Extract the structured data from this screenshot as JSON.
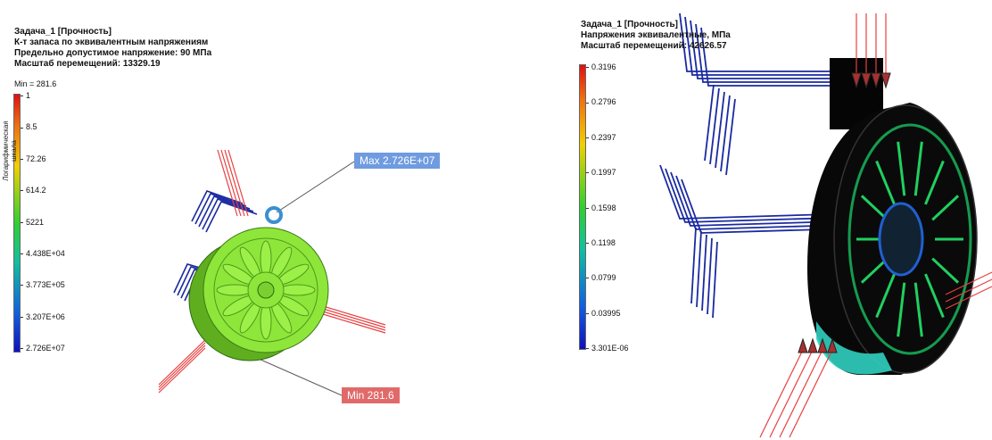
{
  "left": {
    "title_lines": [
      "Задача_1 [Прочность]",
      "К-т запаса по эквивалентным напряжениям",
      "Предельно допустимое напряжение: 90 МПа",
      "Масштаб перемещений: 13329.19"
    ],
    "min_label": "Min = 281.6",
    "scale_caption": "Логарифмическая шкала",
    "scale_labels": [
      "1",
      "8.5",
      "72.26",
      "614.2",
      "5221",
      "4.438E+04",
      "3.773E+05",
      "3.207E+06",
      "2.726E+07"
    ],
    "max_callout": "Max 2.726E+07",
    "min_callout": "Min 281.6"
  },
  "right": {
    "title_lines": [
      "Задача_1 [Прочность]",
      "Напряжения эквивалентные, МПа",
      "Масштаб перемещений: 42626.57"
    ],
    "scale_labels": [
      "0.3196",
      "0.2796",
      "0.2397",
      "0.1997",
      "0.1598",
      "0.1198",
      "0.0799",
      "0.03995",
      "3.301E-06"
    ]
  }
}
